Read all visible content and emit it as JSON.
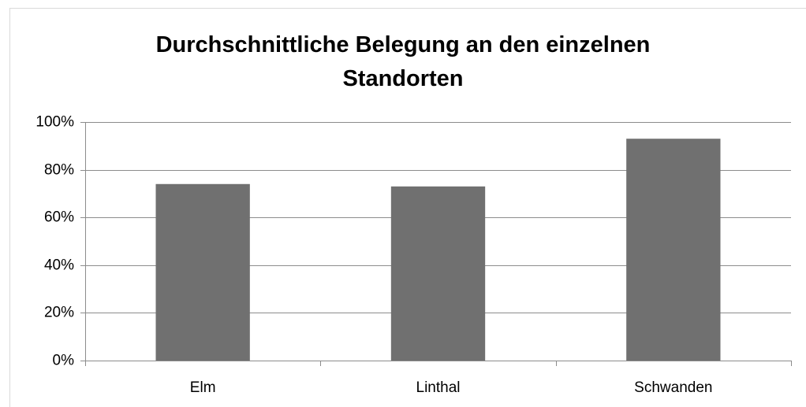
{
  "chart_data": {
    "type": "bar",
    "title": "Durchschnittliche Belegung an den einzelnen Standorten",
    "categories": [
      "Elm",
      "Linthal",
      "Schwanden"
    ],
    "values": [
      74,
      73,
      93
    ],
    "color": "#707070",
    "ylim": [
      0,
      100
    ],
    "yticks": [
      {
        "value": 0,
        "label": "0%"
      },
      {
        "value": 20,
        "label": "20%"
      },
      {
        "value": 40,
        "label": "40%"
      },
      {
        "value": 60,
        "label": "60%"
      },
      {
        "value": 80,
        "label": "80%"
      },
      {
        "value": 100,
        "label": "100%"
      }
    ],
    "grid": true
  }
}
